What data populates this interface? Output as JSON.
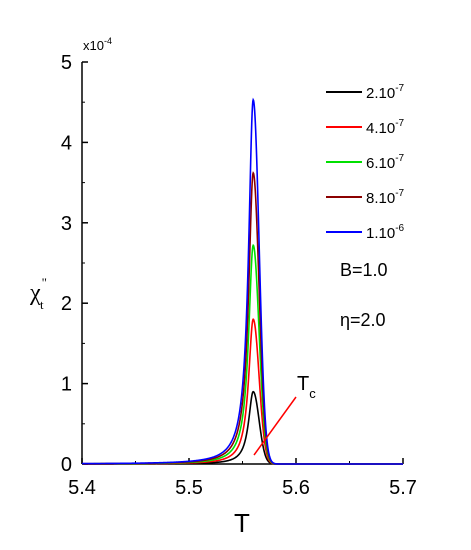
{
  "chart_data": {
    "type": "line",
    "title": "",
    "xlabel": "T",
    "ylabel": {
      "main": "χ",
      "sup": "\"",
      "sub": "t"
    },
    "y_multiplier": {
      "base": "x10",
      "exp": "-4"
    },
    "xlim": [
      5.4,
      5.7
    ],
    "ylim": [
      0,
      5
    ],
    "x_ticks": [
      "5.4",
      "5.5",
      "5.6",
      "5.7"
    ],
    "y_ticks": [
      "0",
      "1",
      "2",
      "3",
      "4",
      "5"
    ],
    "legend_position": "top-right",
    "grid": false,
    "peak_x": 5.56,
    "series": [
      {
        "name": "2.10",
        "exp": "-7",
        "color": "#000000",
        "peak": 0.9
      },
      {
        "name": "4.10",
        "exp": "-7",
        "color": "#ff0000",
        "peak": 1.8
      },
      {
        "name": "6.10",
        "exp": "-7",
        "color": "#00e000",
        "peak": 2.72
      },
      {
        "name": "8.10",
        "exp": "-7",
        "color": "#8b0000",
        "peak": 3.62
      },
      {
        "name": "1.10",
        "exp": "-6",
        "color": "#0000ff",
        "peak": 4.53
      }
    ],
    "annotations": {
      "params": [
        "B=1.0",
        "η=2.0"
      ],
      "tc": {
        "main": "T",
        "sub": "c",
        "color": "#ff0000"
      }
    }
  }
}
